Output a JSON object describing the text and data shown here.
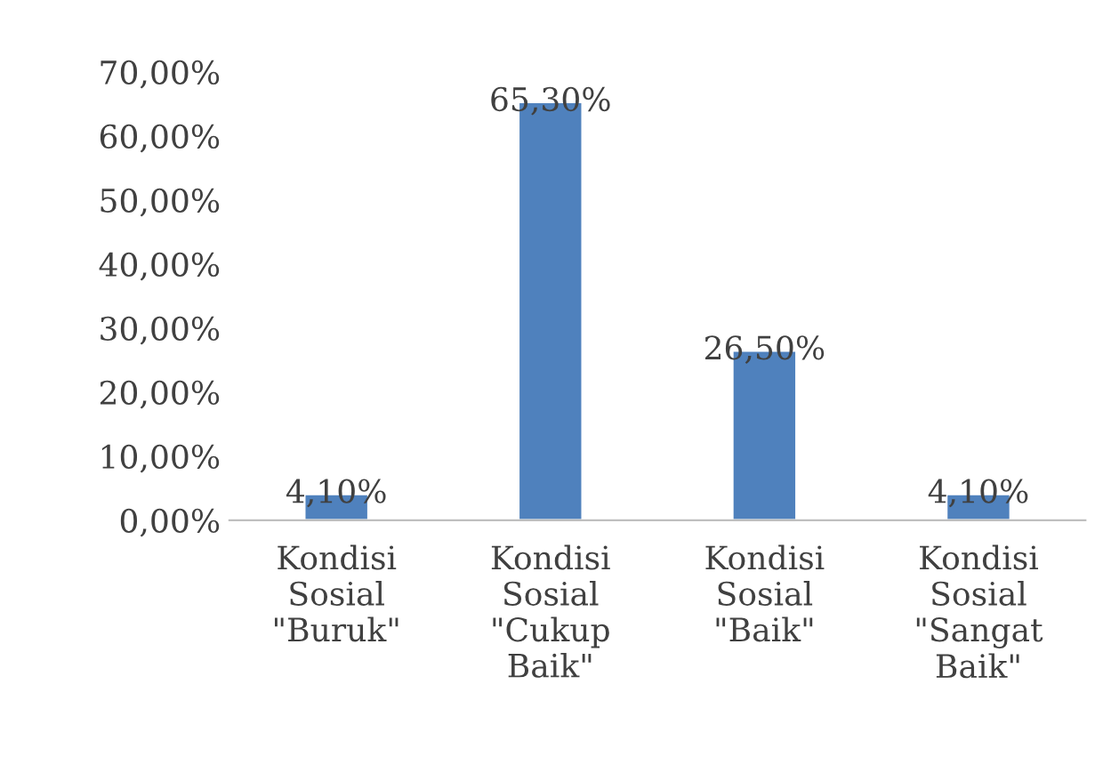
{
  "chart_data": {
    "type": "bar",
    "categories": [
      "Kondisi Sosial \"Buruk\"",
      "Kondisi Sosial \"Cukup Baik\"",
      "Kondisi Sosial \"Baik\"",
      "Kondisi Sosial \"Sangat Baik\""
    ],
    "values": [
      4.1,
      65.3,
      26.5,
      4.1
    ],
    "value_labels": [
      "4,10%",
      "65,30%",
      "26,50%",
      "4,10%"
    ],
    "color": "#4f81bd",
    "ylim": [
      0,
      70
    ],
    "yticks": [
      {
        "value": 0,
        "label": "0,00%"
      },
      {
        "value": 10,
        "label": "10,00%"
      },
      {
        "value": 20,
        "label": "20,00%"
      },
      {
        "value": 30,
        "label": "30,00%"
      },
      {
        "value": 40,
        "label": "40,00%"
      },
      {
        "value": 50,
        "label": "50,00%"
      },
      {
        "value": 60,
        "label": "60,00%"
      },
      {
        "value": 70,
        "label": "70,00%"
      }
    ],
    "grid": false,
    "legend": false
  }
}
